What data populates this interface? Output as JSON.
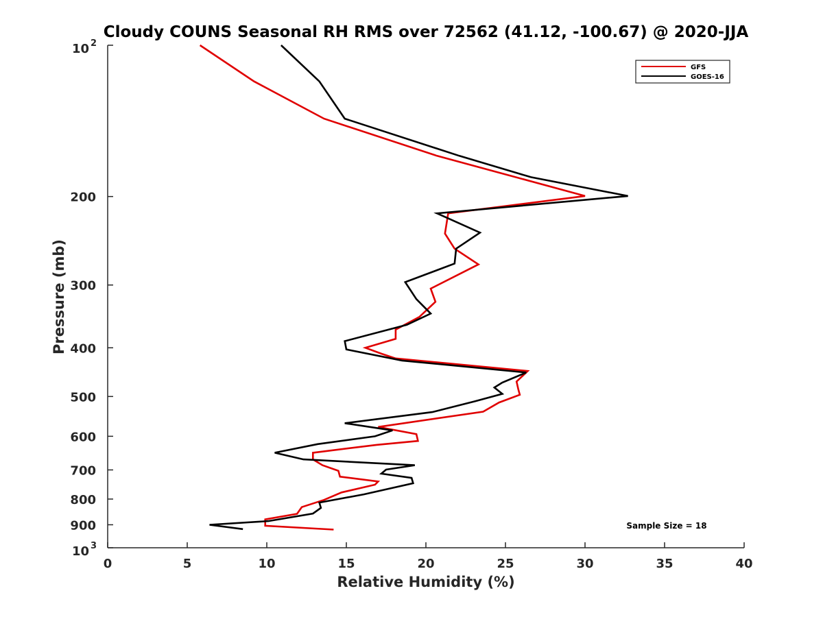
{
  "chart_data": {
    "type": "line",
    "title": "Cloudy COUNS Seasonal RH RMS over 72562 (41.12, -100.67) @ 2020-JJA",
    "xlabel": "Relative Humidity (%)",
    "ylabel": "Pressure (mb)",
    "xlim": [
      0,
      40
    ],
    "ylim": [
      100,
      1000
    ],
    "yscale": "log",
    "yreversed": true,
    "grid": false,
    "legend_position": "top-right",
    "annotation": "Sample Size = 18",
    "xticks": [
      "0",
      "5",
      "10",
      "15",
      "20",
      "25",
      "30",
      "35",
      "40"
    ],
    "yticks": [
      {
        "value": 100,
        "base": "10",
        "exp": "2"
      },
      {
        "value": 200,
        "label": "200"
      },
      {
        "value": 300,
        "label": "300"
      },
      {
        "value": 400,
        "label": "400"
      },
      {
        "value": 500,
        "label": "500"
      },
      {
        "value": 600,
        "label": "600"
      },
      {
        "value": 700,
        "label": "700"
      },
      {
        "value": 800,
        "label": "800"
      },
      {
        "value": 900,
        "label": "900"
      },
      {
        "value": 1000,
        "base": "10",
        "exp": "3"
      }
    ],
    "series": [
      {
        "name": "GFS",
        "color": "#e00000",
        "points": [
          [
            5.8,
            100
          ],
          [
            9.2,
            118
          ],
          [
            13.6,
            140
          ],
          [
            20.7,
            166
          ],
          [
            24.8,
            180
          ],
          [
            30.0,
            199.5
          ],
          [
            21.4,
            216
          ],
          [
            21.2,
            237
          ],
          [
            21.8,
            254
          ],
          [
            23.3,
            273
          ],
          [
            20.3,
            305
          ],
          [
            20.6,
            324
          ],
          [
            19.6,
            347
          ],
          [
            18.1,
            368
          ],
          [
            18.1,
            384
          ],
          [
            16.2,
            400
          ],
          [
            17.2,
            411
          ],
          [
            18.1,
            420
          ],
          [
            26.4,
            445
          ],
          [
            25.7,
            467
          ],
          [
            25.8,
            483
          ],
          [
            25.9,
            496
          ],
          [
            24.6,
            514
          ],
          [
            23.6,
            536
          ],
          [
            17.0,
            575
          ],
          [
            19.4,
            594
          ],
          [
            19.5,
            613
          ],
          [
            16.9,
            624
          ],
          [
            12.9,
            647
          ],
          [
            12.9,
            667
          ],
          [
            13.5,
            685
          ],
          [
            14.5,
            703
          ],
          [
            14.6,
            722
          ],
          [
            17.0,
            738
          ],
          [
            16.8,
            749
          ],
          [
            14.7,
            776
          ],
          [
            13.6,
            803
          ],
          [
            12.2,
            830
          ],
          [
            11.9,
            856
          ],
          [
            9.9,
            878
          ],
          [
            9.9,
            904
          ],
          [
            14.2,
            920
          ]
        ]
      },
      {
        "name": "GOES-16",
        "color": "#000000",
        "points": [
          [
            10.9,
            100
          ],
          [
            13.3,
            118
          ],
          [
            14.9,
            140
          ],
          [
            22.1,
            166
          ],
          [
            26.6,
            183
          ],
          [
            32.7,
            199.5
          ],
          [
            20.7,
            216
          ],
          [
            23.4,
            236
          ],
          [
            21.9,
            254
          ],
          [
            21.8,
            272
          ],
          [
            18.7,
            296
          ],
          [
            19.4,
            320
          ],
          [
            20.3,
            342
          ],
          [
            18.8,
            360
          ],
          [
            14.9,
            388
          ],
          [
            15.0,
            403
          ],
          [
            18.5,
            424
          ],
          [
            26.3,
            448
          ],
          [
            24.8,
            469
          ],
          [
            24.3,
            480
          ],
          [
            24.8,
            494
          ],
          [
            23.1,
            511
          ],
          [
            20.4,
            537
          ],
          [
            14.9,
            565
          ],
          [
            17.9,
            584
          ],
          [
            16.8,
            600
          ],
          [
            13.2,
            622
          ],
          [
            10.5,
            647
          ],
          [
            12.3,
            667
          ],
          [
            19.3,
            685
          ],
          [
            17.5,
            699
          ],
          [
            17.2,
            712
          ],
          [
            19.1,
            726
          ],
          [
            19.2,
            744
          ],
          [
            16.1,
            783
          ],
          [
            13.3,
            813
          ],
          [
            13.4,
            833
          ],
          [
            12.9,
            855
          ],
          [
            10.1,
            885
          ],
          [
            6.4,
            900
          ],
          [
            8.5,
            918
          ]
        ]
      }
    ]
  }
}
